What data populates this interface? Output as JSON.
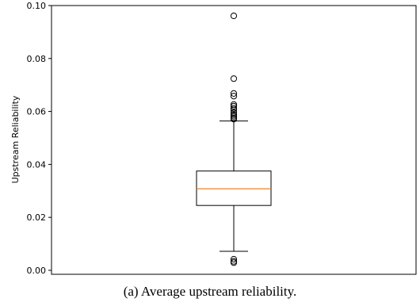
{
  "caption": "(a) Average upstream reliability.",
  "chart_data": {
    "type": "box",
    "ylabel": "Upstream Reliability",
    "xlabel": "",
    "ylim": [
      -0.0015,
      0.1
    ],
    "yticks": [
      0.0,
      0.02,
      0.04,
      0.06,
      0.08,
      0.1
    ],
    "yticklabels": [
      "0.00",
      "0.02",
      "0.04",
      "0.06",
      "0.08",
      "0.10"
    ],
    "box": {
      "whisker_low": 0.0072,
      "q1": 0.0245,
      "median": 0.0308,
      "q3": 0.0375,
      "whisker_high": 0.0564
    },
    "outliers": [
      0.0961,
      0.0724,
      0.0668,
      0.0658,
      0.0626,
      0.062,
      0.0612,
      0.0606,
      0.0596,
      0.0588,
      0.0582,
      0.0576,
      0.0571,
      0.0042,
      0.0034,
      0.0029
    ],
    "colors": {
      "box": "#000000",
      "median": "#ff7f0e",
      "outlier": "#000000"
    }
  }
}
